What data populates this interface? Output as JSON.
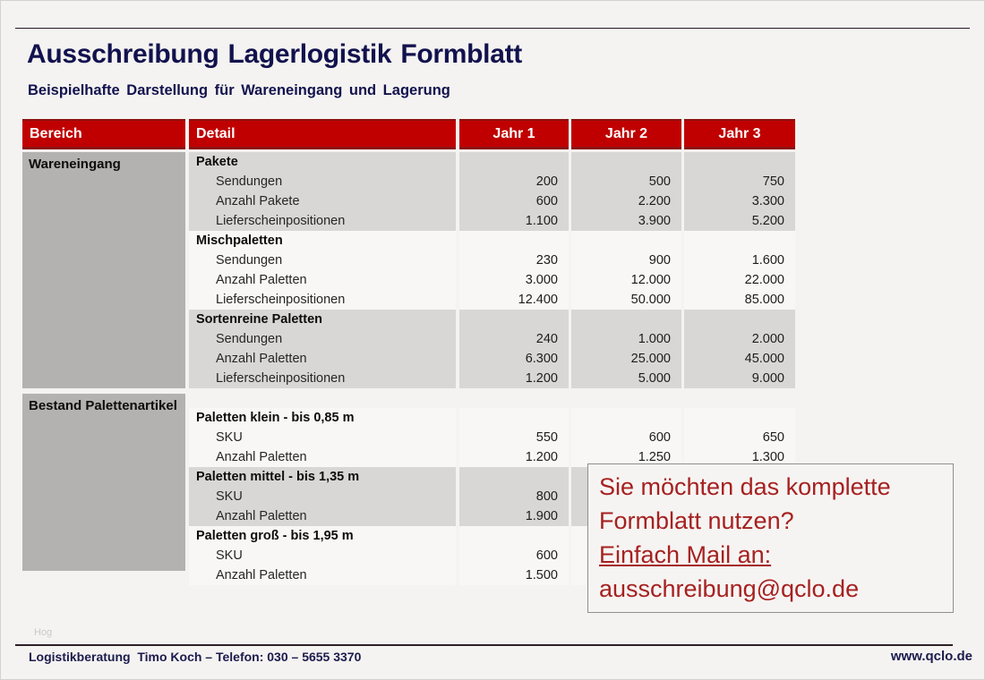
{
  "header": {
    "title": "Ausschreibung Lagerlogistik Formblatt",
    "subtitle": "Beispielhafte Darstellung für Wareneingang und Lagerung"
  },
  "table": {
    "columns": [
      "Bereich",
      "Detail",
      "Jahr 1",
      "Jahr 2",
      "Jahr 3"
    ],
    "areas": [
      {
        "name": "Wareneingang",
        "groups": [
          {
            "title": "Pakete",
            "shade": "gray",
            "rows": [
              {
                "label": "Sendungen",
                "values": [
                  "200",
                  "500",
                  "750"
                ]
              },
              {
                "label": "Anzahl Pakete",
                "values": [
                  "600",
                  "2.200",
                  "3.300"
                ]
              },
              {
                "label": "Lieferscheinpositionen",
                "values": [
                  "1.100",
                  "3.900",
                  "5.200"
                ]
              }
            ]
          },
          {
            "title": "Mischpaletten",
            "shade": "light",
            "rows": [
              {
                "label": "Sendungen",
                "values": [
                  "230",
                  "900",
                  "1.600"
                ]
              },
              {
                "label": "Anzahl Paletten",
                "values": [
                  "3.000",
                  "12.000",
                  "22.000"
                ]
              },
              {
                "label": "Lieferscheinpositionen",
                "values": [
                  "12.400",
                  "50.000",
                  "85.000"
                ]
              }
            ]
          },
          {
            "title": "Sortenreine Paletten",
            "shade": "gray",
            "rows": [
              {
                "label": "Sendungen",
                "values": [
                  "240",
                  "1.000",
                  "2.000"
                ]
              },
              {
                "label": "Anzahl Paletten",
                "values": [
                  "6.300",
                  "25.000",
                  "45.000"
                ]
              },
              {
                "label": "Lieferscheinpositionen",
                "values": [
                  "1.200",
                  "5.000",
                  "9.000"
                ]
              }
            ]
          }
        ]
      },
      {
        "name": "Bestand Palettenartikel",
        "groups": [
          {
            "title": "Paletten klein - bis 0,85 m",
            "shade": "light",
            "rows": [
              {
                "label": "SKU",
                "values": [
                  "550",
                  "600",
                  "650"
                ]
              },
              {
                "label": "Anzahl Paletten",
                "values": [
                  "1.200",
                  "1.250",
                  "1.300"
                ]
              }
            ]
          },
          {
            "title": "Paletten mittel - bis 1,35 m",
            "shade": "gray",
            "rows": [
              {
                "label": "SKU",
                "values": [
                  "800",
                  "",
                  ""
                ]
              },
              {
                "label": "Anzahl Paletten",
                "values": [
                  "1.900",
                  "",
                  ""
                ]
              }
            ]
          },
          {
            "title": "Paletten groß - bis 1,95 m",
            "shade": "light",
            "rows": [
              {
                "label": "SKU",
                "values": [
                  "600",
                  "",
                  ""
                ]
              },
              {
                "label": "Anzahl Paletten",
                "values": [
                  "1.500",
                  "",
                  ""
                ]
              }
            ]
          }
        ]
      }
    ]
  },
  "cta": {
    "lines": [
      "Sie möchten das komplette",
      "Formblatt nutzen?",
      "Einfach Mail an:",
      "ausschreibung@qclo.de"
    ],
    "text_color": "#a62121"
  },
  "footer": {
    "watermark": "Hog",
    "left": "Logistikberatung  Timo Koch – Telefon: 030 – 5655 3370",
    "right": "www.qclo.de"
  },
  "colors": {
    "header_red": "#c00000",
    "header_red_dark": "#8c1111",
    "bereich_gray": "#b3b2b0",
    "stripe_gray": "#d8d7d5",
    "stripe_light": "#f8f7f5",
    "title_navy": "#12124e"
  }
}
